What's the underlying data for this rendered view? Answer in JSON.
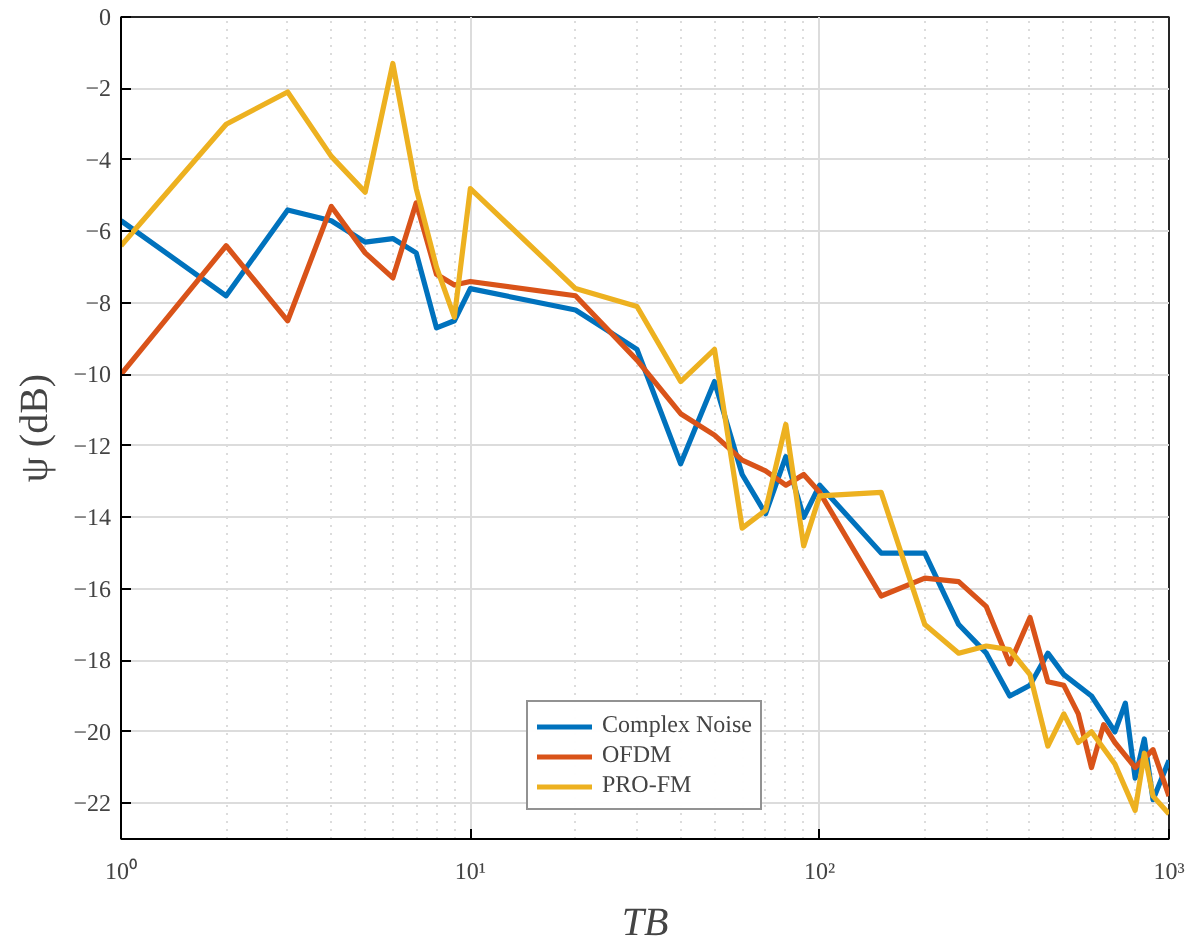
{
  "chart_data": {
    "type": "line",
    "xlabel": "TB",
    "ylabel": "ψ (dB)",
    "log": "x",
    "xlim": [
      1,
      1000
    ],
    "ylim": [
      -23,
      0
    ],
    "xticks": [
      {
        "value": 1,
        "label": "10⁰"
      },
      {
        "value": 10,
        "label": "10¹"
      },
      {
        "value": 100,
        "label": "10²"
      },
      {
        "value": 1000,
        "label": "10³"
      }
    ],
    "yticks": [
      -22,
      -20,
      -18,
      -16,
      -14,
      -12,
      -10,
      -8,
      -6,
      -4,
      -2,
      0
    ],
    "grid": true,
    "legend": "bottom",
    "line_style": "solid",
    "marker": "none",
    "series": [
      {
        "name": "Complex Noise",
        "color": "#0072bd",
        "x": [
          1,
          2,
          3,
          4,
          5,
          6,
          7,
          8,
          9,
          10,
          20,
          30,
          40,
          50,
          60,
          70,
          80,
          90,
          100,
          150,
          200,
          250,
          300,
          350,
          400,
          450,
          500,
          600,
          700,
          750,
          800,
          850,
          900,
          1000
        ],
        "values": [
          -5.7,
          -7.8,
          -5.4,
          -5.7,
          -6.3,
          -6.2,
          -6.6,
          -8.7,
          -8.5,
          -7.6,
          -8.2,
          -9.3,
          -12.5,
          -10.2,
          -12.8,
          -13.9,
          -12.3,
          -14.0,
          -13.1,
          -15.0,
          -15.0,
          -17.0,
          -17.8,
          -19.0,
          -18.7,
          -17.8,
          -18.4,
          -19.0,
          -20.0,
          -19.2,
          -21.3,
          -20.2,
          -21.9,
          -20.8
        ]
      },
      {
        "name": "OFDM",
        "color": "#d95319",
        "x": [
          1,
          2,
          3,
          4,
          5,
          6,
          7,
          8,
          9,
          10,
          20,
          30,
          40,
          50,
          60,
          70,
          80,
          90,
          100,
          150,
          200,
          250,
          300,
          350,
          400,
          450,
          500,
          550,
          600,
          650,
          700,
          800,
          900,
          1000
        ],
        "values": [
          -10.0,
          -6.4,
          -8.5,
          -5.3,
          -6.6,
          -7.3,
          -5.2,
          -7.2,
          -7.5,
          -7.4,
          -7.8,
          -9.6,
          -11.1,
          -11.7,
          -12.4,
          -12.7,
          -13.1,
          -12.8,
          -13.3,
          -16.2,
          -15.7,
          -15.8,
          -16.5,
          -18.1,
          -16.8,
          -18.6,
          -18.7,
          -19.5,
          -21.0,
          -19.8,
          -20.3,
          -21.0,
          -20.5,
          -21.8
        ]
      },
      {
        "name": "PRO-FM",
        "color": "#edb120",
        "x": [
          1,
          2,
          3,
          4,
          5,
          6,
          7,
          8,
          9,
          10,
          20,
          30,
          40,
          50,
          60,
          70,
          80,
          90,
          100,
          150,
          200,
          250,
          300,
          350,
          400,
          450,
          500,
          550,
          600,
          700,
          800,
          850,
          900,
          1000
        ],
        "values": [
          -6.4,
          -3.0,
          -2.1,
          -3.9,
          -4.9,
          -1.3,
          -4.8,
          -7.0,
          -8.4,
          -4.8,
          -7.6,
          -8.1,
          -10.2,
          -9.3,
          -14.3,
          -13.8,
          -11.4,
          -14.8,
          -13.4,
          -13.3,
          -17.0,
          -17.8,
          -17.6,
          -17.7,
          -18.4,
          -20.4,
          -19.5,
          -20.3,
          -20.0,
          -20.9,
          -22.2,
          -20.6,
          -21.8,
          -22.3
        ]
      }
    ]
  }
}
